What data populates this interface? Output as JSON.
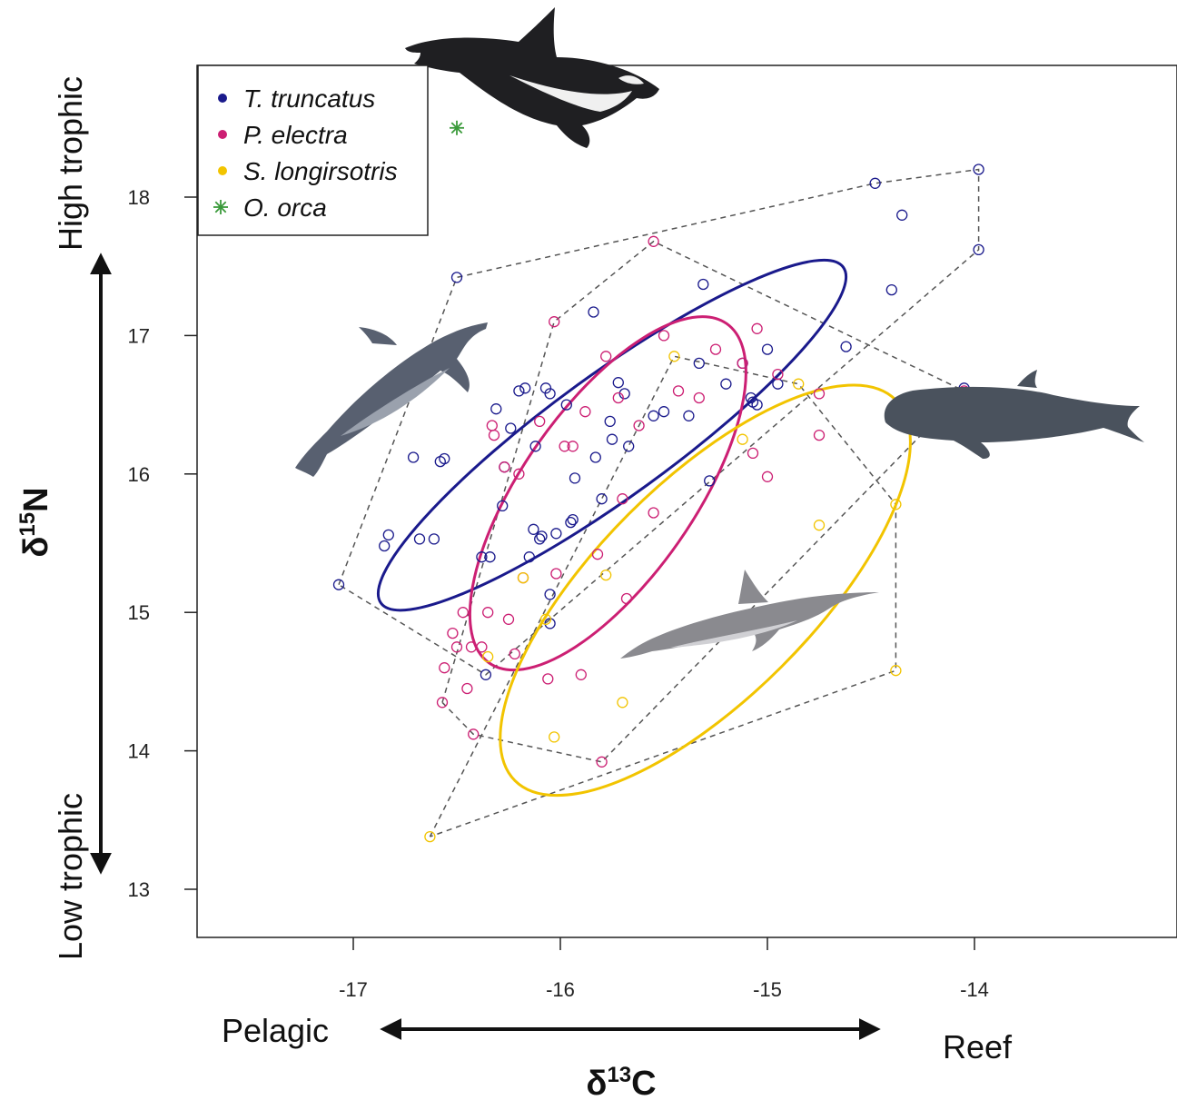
{
  "chart_data": {
    "type": "scatter",
    "xlim": [
      -17.8,
      -13.1
    ],
    "ylim": [
      12.7,
      19.0
    ],
    "x_ticks": [
      -17,
      -16,
      -15,
      -14
    ],
    "y_ticks": [
      13,
      14,
      15,
      16,
      17,
      18
    ],
    "x_title": {
      "prefix": "δ",
      "sup": "13",
      "suffix": "C"
    },
    "y_title": {
      "prefix": "δ",
      "sup": "15",
      "suffix": "N"
    },
    "x_end_labels": {
      "left": "Pelagic",
      "right": "Reef"
    },
    "y_end_labels": {
      "top": "High trophic",
      "bottom": "Low trophic"
    },
    "legend_position": "top-left",
    "series": [
      {
        "name": "T. truncatus",
        "color": "#1a1a8c",
        "marker": "circle",
        "points": [
          [
            -17.07,
            15.2
          ],
          [
            -16.85,
            15.48
          ],
          [
            -16.83,
            15.56
          ],
          [
            -16.71,
            16.12
          ],
          [
            -16.68,
            15.53
          ],
          [
            -16.61,
            15.53
          ],
          [
            -16.58,
            16.09
          ],
          [
            -16.56,
            16.11
          ],
          [
            -16.5,
            17.42
          ],
          [
            -16.38,
            15.4
          ],
          [
            -16.36,
            14.55
          ],
          [
            -16.34,
            15.4
          ],
          [
            -16.31,
            16.47
          ],
          [
            -16.28,
            15.77
          ],
          [
            -16.27,
            16.05
          ],
          [
            -16.24,
            16.33
          ],
          [
            -16.2,
            16.6
          ],
          [
            -16.17,
            16.62
          ],
          [
            -16.15,
            15.4
          ],
          [
            -16.13,
            15.6
          ],
          [
            -16.12,
            16.2
          ],
          [
            -16.1,
            15.53
          ],
          [
            -16.09,
            15.55
          ],
          [
            -16.07,
            16.62
          ],
          [
            -16.05,
            16.58
          ],
          [
            -16.05,
            15.13
          ],
          [
            -16.05,
            14.92
          ],
          [
            -16.02,
            15.57
          ],
          [
            -15.97,
            16.5
          ],
          [
            -15.95,
            15.65
          ],
          [
            -15.94,
            15.67
          ],
          [
            -15.93,
            15.97
          ],
          [
            -15.84,
            17.17
          ],
          [
            -15.83,
            16.12
          ],
          [
            -15.8,
            15.82
          ],
          [
            -15.76,
            16.38
          ],
          [
            -15.75,
            16.25
          ],
          [
            -15.72,
            16.66
          ],
          [
            -15.69,
            16.58
          ],
          [
            -15.67,
            16.2
          ],
          [
            -15.55,
            16.42
          ],
          [
            -15.5,
            16.45
          ],
          [
            -15.38,
            16.42
          ],
          [
            -15.33,
            16.8
          ],
          [
            -15.31,
            17.37
          ],
          [
            -15.28,
            15.95
          ],
          [
            -15.2,
            16.65
          ],
          [
            -15.12,
            16.8
          ],
          [
            -15.08,
            16.55
          ],
          [
            -15.07,
            16.52
          ],
          [
            -15.05,
            16.5
          ],
          [
            -15.0,
            16.9
          ],
          [
            -14.95,
            16.65
          ],
          [
            -14.62,
            16.92
          ],
          [
            -14.48,
            18.1
          ],
          [
            -14.35,
            17.87
          ],
          [
            -14.4,
            17.33
          ],
          [
            -13.98,
            18.2
          ],
          [
            -13.98,
            17.62
          ],
          [
            -14.05,
            16.62
          ]
        ]
      },
      {
        "name": "P. electra",
        "color": "#cc1f73",
        "marker": "circle",
        "points": [
          [
            -16.57,
            14.35
          ],
          [
            -16.56,
            14.6
          ],
          [
            -16.52,
            14.85
          ],
          [
            -16.5,
            14.75
          ],
          [
            -16.47,
            15.0
          ],
          [
            -16.45,
            14.45
          ],
          [
            -16.43,
            14.75
          ],
          [
            -16.42,
            14.12
          ],
          [
            -16.38,
            14.75
          ],
          [
            -16.35,
            15.0
          ],
          [
            -16.33,
            16.35
          ],
          [
            -16.32,
            16.28
          ],
          [
            -16.27,
            16.05
          ],
          [
            -16.25,
            14.95
          ],
          [
            -16.22,
            14.7
          ],
          [
            -16.2,
            16.0
          ],
          [
            -16.18,
            15.25
          ],
          [
            -16.1,
            16.38
          ],
          [
            -16.06,
            14.52
          ],
          [
            -16.02,
            15.28
          ],
          [
            -16.03,
            17.1
          ],
          [
            -15.98,
            16.2
          ],
          [
            -15.94,
            16.2
          ],
          [
            -15.9,
            14.55
          ],
          [
            -15.88,
            16.45
          ],
          [
            -15.82,
            15.42
          ],
          [
            -15.78,
            16.85
          ],
          [
            -15.72,
            16.55
          ],
          [
            -15.7,
            15.82
          ],
          [
            -15.68,
            15.1
          ],
          [
            -15.62,
            16.35
          ],
          [
            -15.55,
            15.72
          ],
          [
            -15.55,
            17.68
          ],
          [
            -15.5,
            17.0
          ],
          [
            -15.43,
            16.6
          ],
          [
            -15.33,
            16.55
          ],
          [
            -15.25,
            16.9
          ],
          [
            -15.12,
            16.8
          ],
          [
            -15.07,
            16.15
          ],
          [
            -15.05,
            17.05
          ],
          [
            -15.0,
            15.98
          ],
          [
            -14.95,
            16.72
          ],
          [
            -14.75,
            16.28
          ],
          [
            -14.75,
            16.58
          ],
          [
            -14.05,
            16.6
          ],
          [
            -15.8,
            13.92
          ]
        ]
      },
      {
        "name": "S. longirsotris",
        "color": "#f2c400",
        "marker": "circle",
        "points": [
          [
            -16.63,
            13.38
          ],
          [
            -16.35,
            14.68
          ],
          [
            -16.18,
            15.25
          ],
          [
            -16.07,
            14.95
          ],
          [
            -16.03,
            14.1
          ],
          [
            -15.78,
            15.27
          ],
          [
            -15.7,
            14.35
          ],
          [
            -15.45,
            16.85
          ],
          [
            -15.12,
            16.25
          ],
          [
            -14.85,
            16.65
          ],
          [
            -14.75,
            15.63
          ],
          [
            -14.38,
            15.78
          ],
          [
            -14.38,
            14.58
          ]
        ]
      },
      {
        "name": "O. orca",
        "color": "#3a9a3a",
        "marker": "asterisk",
        "points": [
          [
            -16.5,
            18.5
          ]
        ]
      }
    ],
    "hulls": [
      {
        "series": "T. truncatus",
        "points": [
          [
            -17.07,
            15.2
          ],
          [
            -16.5,
            17.42
          ],
          [
            -14.48,
            18.1
          ],
          [
            -13.98,
            18.2
          ],
          [
            -13.98,
            17.62
          ],
          [
            -16.36,
            14.55
          ],
          [
            -17.07,
            15.2
          ]
        ]
      },
      {
        "series": "P. electra",
        "points": [
          [
            -16.57,
            14.35
          ],
          [
            -16.03,
            17.1
          ],
          [
            -15.55,
            17.68
          ],
          [
            -14.05,
            16.6
          ],
          [
            -15.8,
            13.92
          ],
          [
            -16.42,
            14.12
          ],
          [
            -16.57,
            14.35
          ]
        ]
      },
      {
        "series": "S. longirsotris",
        "points": [
          [
            -16.63,
            13.38
          ],
          [
            -15.45,
            16.85
          ],
          [
            -14.85,
            16.65
          ],
          [
            -14.38,
            15.78
          ],
          [
            -14.38,
            14.58
          ],
          [
            -16.63,
            13.38
          ]
        ]
      }
    ],
    "ellipses": [
      {
        "series": "T. truncatus",
        "color": "#1a1a8c",
        "cx": -15.75,
        "cy": 16.28,
        "rx": 1.38,
        "ry": 0.44,
        "angle_deg": -36
      },
      {
        "series": "P. electra",
        "color": "#cc1f73",
        "cx": -15.77,
        "cy": 15.86,
        "rx": 1.0,
        "ry": 0.62,
        "angle_deg": -55
      },
      {
        "series": "S. longirsotris",
        "color": "#f2c400",
        "cx": -15.3,
        "cy": 15.16,
        "rx": 1.3,
        "ry": 0.78,
        "angle_deg": -45
      }
    ]
  },
  "silhouettes": {
    "orca": "orca-silhouette",
    "bottlenose": "bottlenose-dolphin-silhouette",
    "pilot_whale": "pilot-whale-silhouette",
    "spinner": "spinner-dolphin-silhouette",
    "colors": {
      "dark": "#1f1f22",
      "slate": "#586070",
      "grey": "#8a8a8f",
      "whale": "#4a525d"
    }
  }
}
